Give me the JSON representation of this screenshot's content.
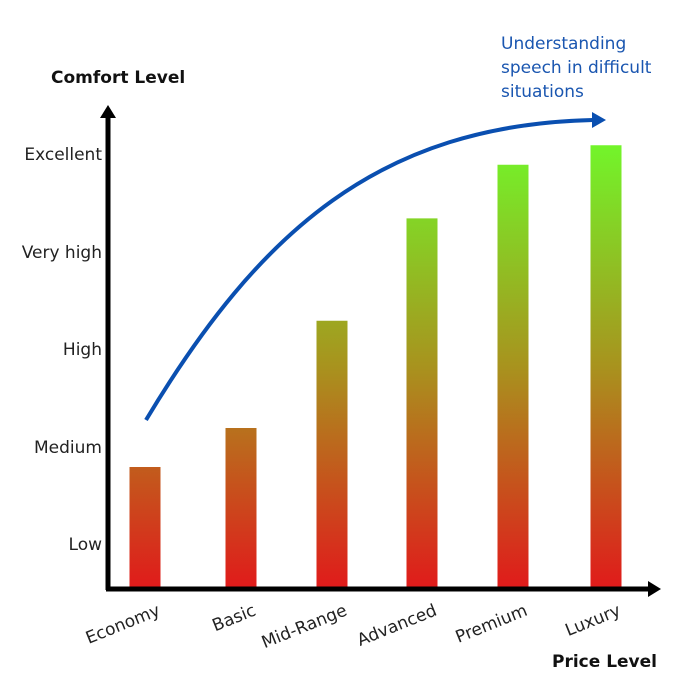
{
  "chart_data": {
    "type": "bar",
    "title": "",
    "xlabel": "Price Level",
    "ylabel": "Comfort Level",
    "categories": [
      "Economy",
      "Basic",
      "Mid-Range",
      "Advanced",
      "Premium",
      "Luxury"
    ],
    "values": [
      1.8,
      2.2,
      3.3,
      4.35,
      4.9,
      5.1
    ],
    "y_tick_labels": [
      "Low",
      "Medium",
      "High",
      "Very high",
      "Excellent"
    ],
    "y_tick_values": [
      1,
      2,
      3,
      4,
      5
    ],
    "ylim": [
      0.55,
      5.5
    ],
    "grid": false,
    "legend": null,
    "bar_gradient": {
      "bottom": "#e01b1b",
      "top": "#72f52a"
    },
    "annotation": {
      "text_lines": [
        "Understanding",
        "speech in difficult",
        "situations"
      ],
      "color": "#1a56b0",
      "arrow": "curved arrow rising from Economy to Luxury"
    }
  },
  "axes": {
    "y_title": "Comfort Level",
    "x_title": "Price Level"
  }
}
